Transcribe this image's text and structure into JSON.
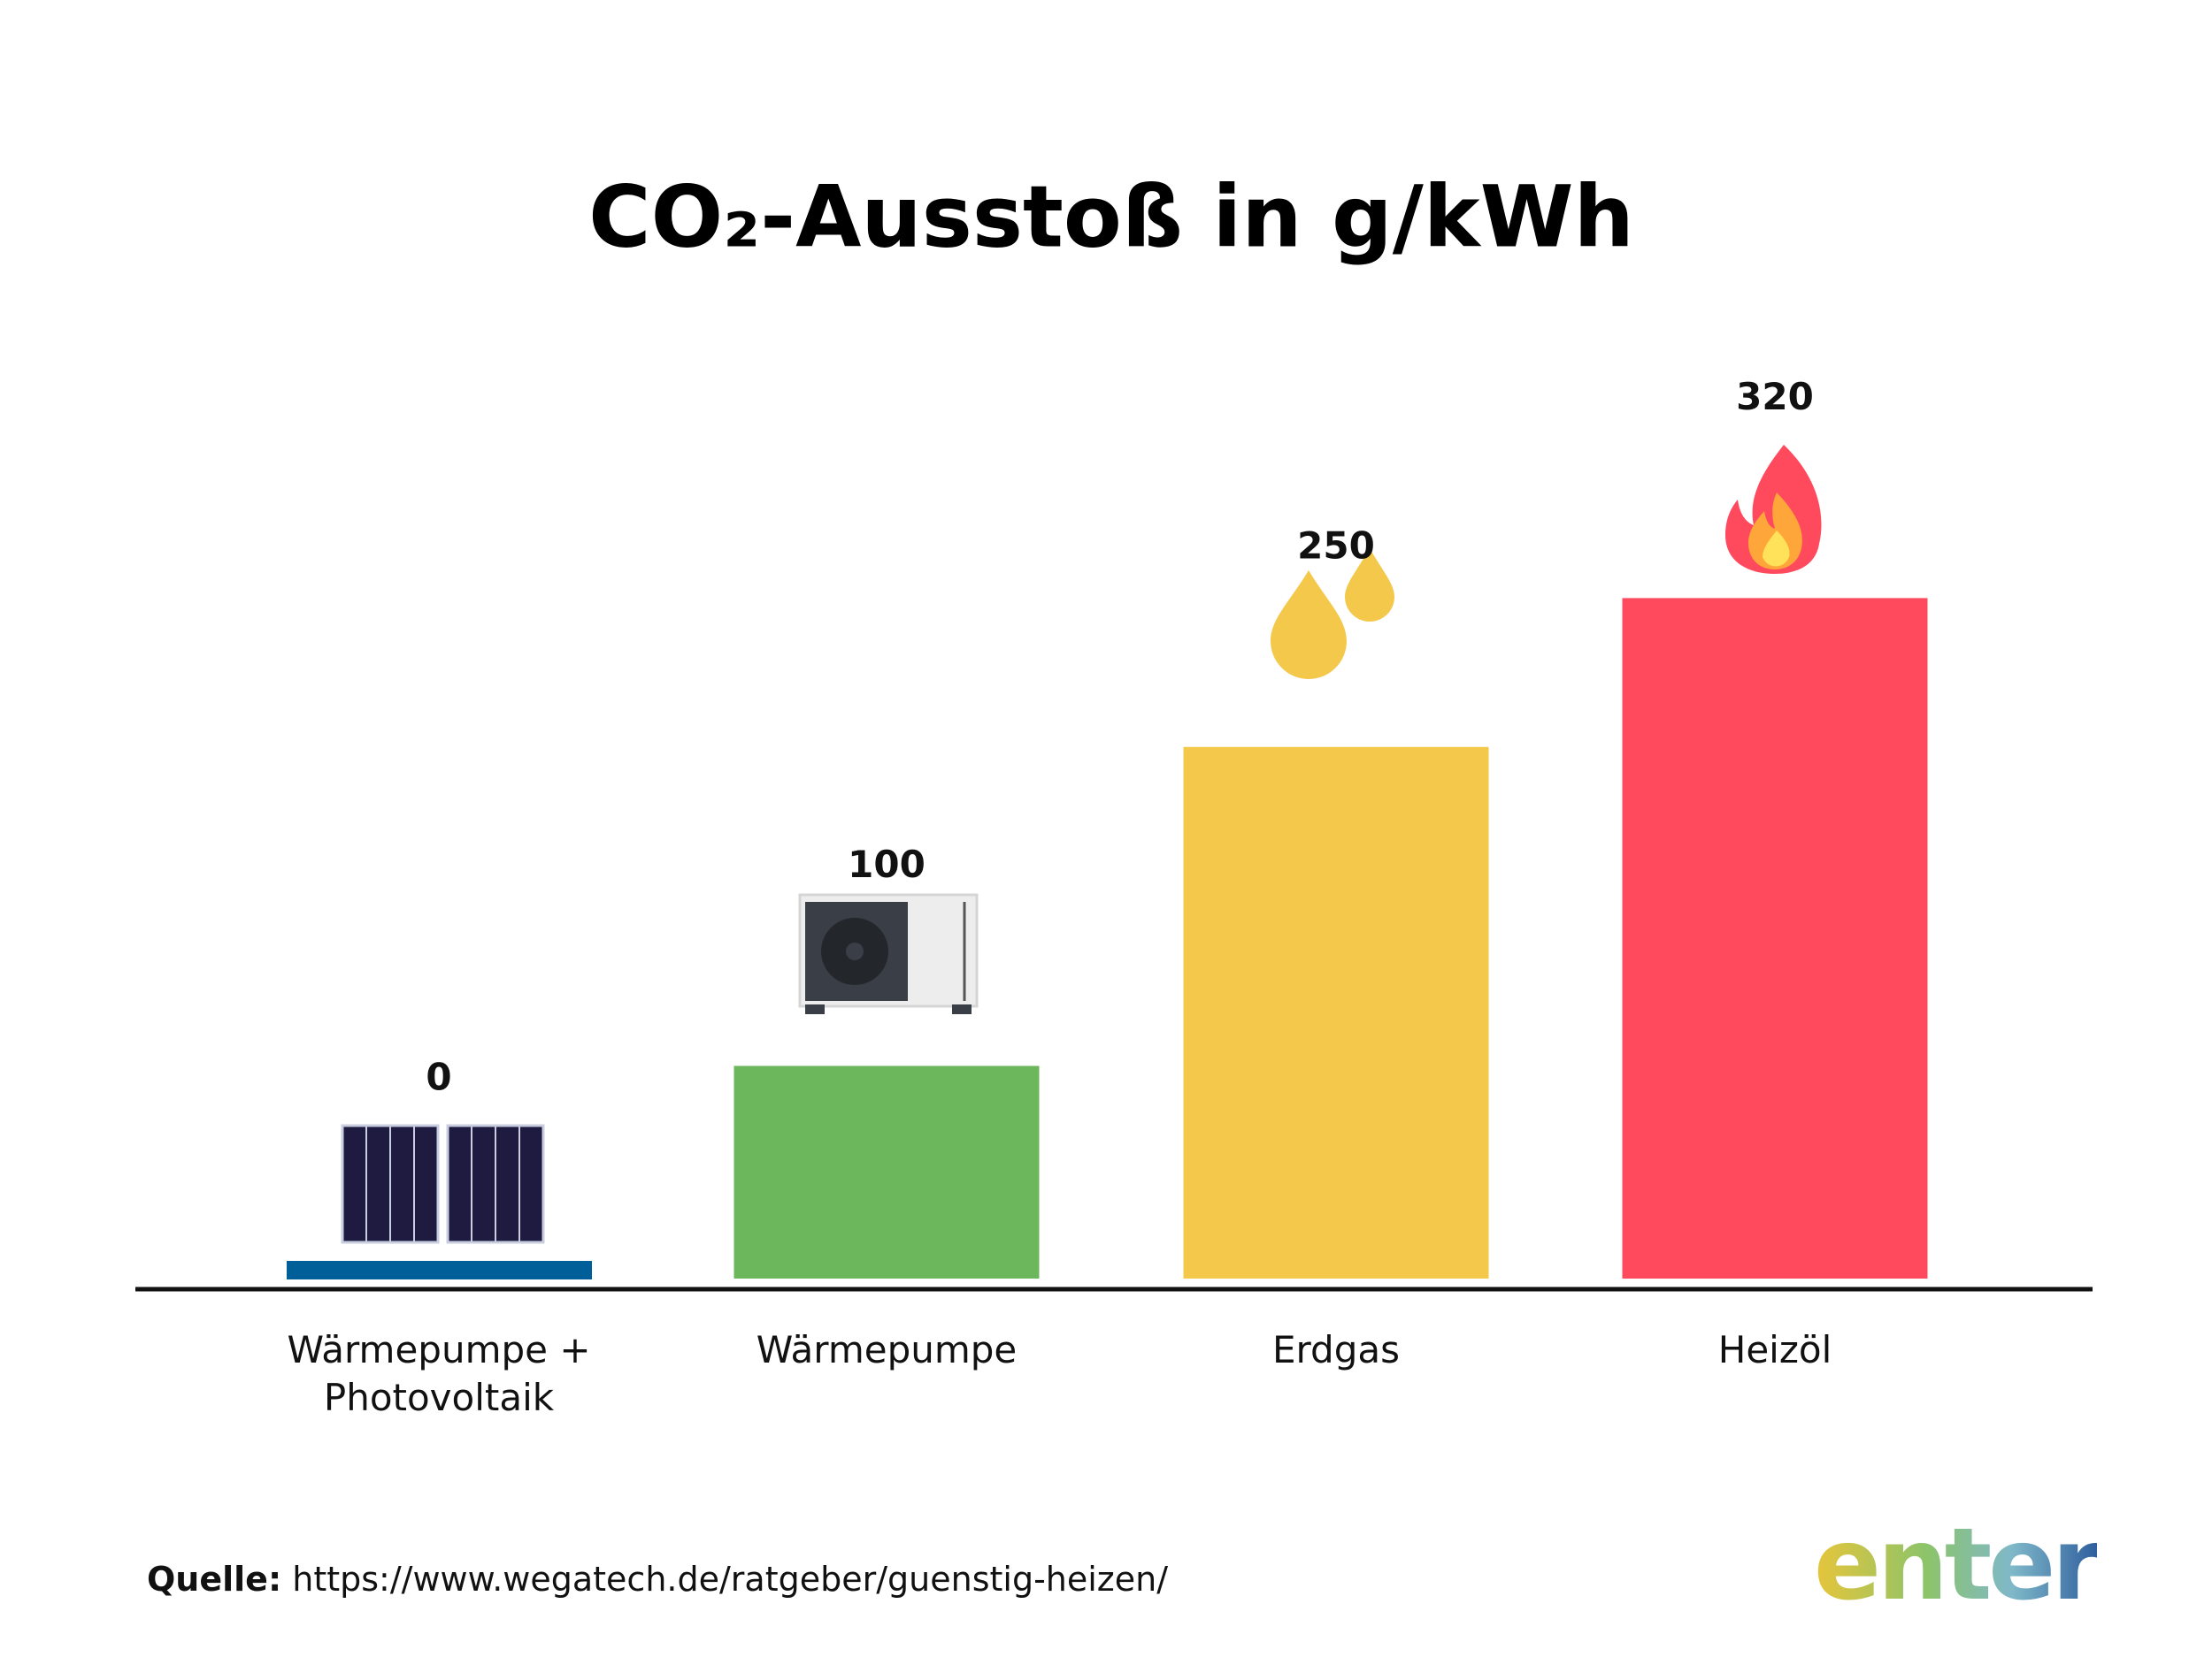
{
  "chart_data": {
    "type": "bar",
    "title": "CO₂-Ausstoß in g/kWh",
    "categories": [
      "Wärmepumpe + Photovoltaik",
      "Wärmepumpe",
      "Erdgas",
      "Heizöl"
    ],
    "values": [
      0,
      100,
      250,
      320
    ],
    "colors": [
      "#005f99",
      "#6cb75c",
      "#f4c94b",
      "#ff4a5e"
    ],
    "ylim": [
      0,
      400
    ]
  },
  "source": {
    "label": "Quelle:",
    "url": "https://www.wegatech.de/ratgeber/guenstig-heizen/"
  },
  "logo": "enter"
}
